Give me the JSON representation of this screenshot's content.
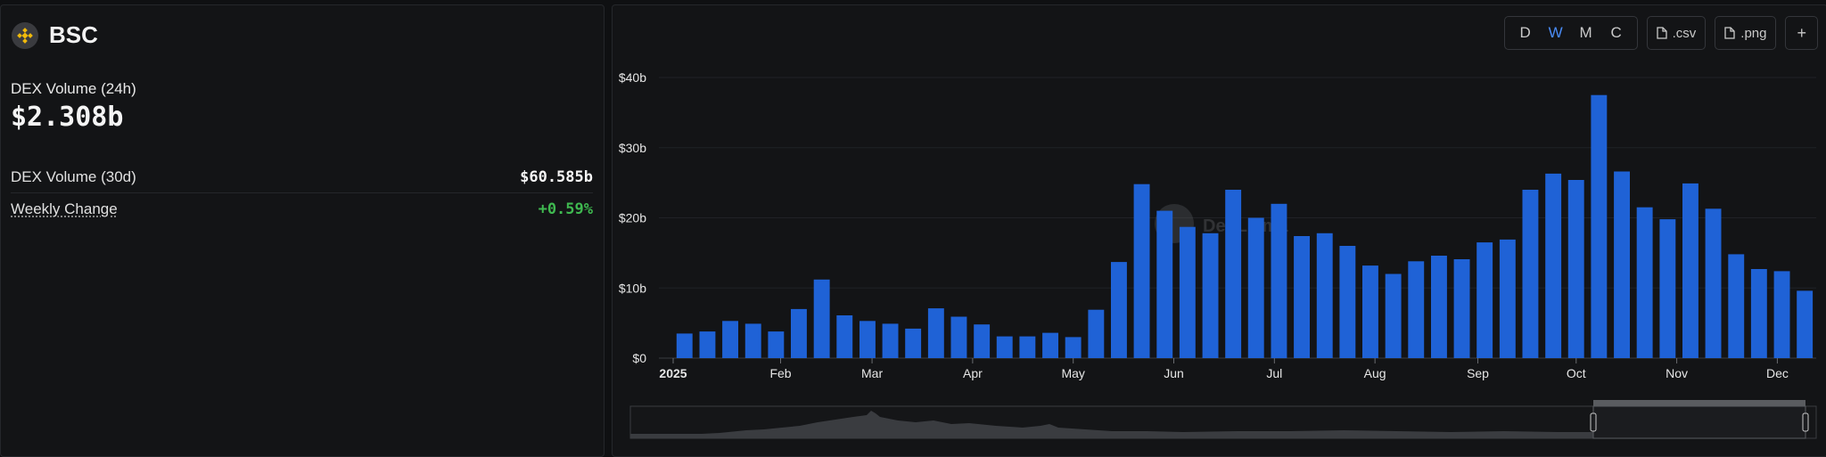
{
  "chain": {
    "name": "BSC",
    "icon": "bnb-chain-icon"
  },
  "dex_volume_24h": {
    "label": "DEX Volume (24h)",
    "value": "$2.308b"
  },
  "stats": [
    {
      "label": "DEX Volume (30d)",
      "value": "$60.585b",
      "tone": "neutral"
    },
    {
      "label": "Weekly Change",
      "value": "+0.59%",
      "tone": "positive"
    }
  ],
  "toolbar": {
    "granularity": [
      "D",
      "W",
      "M",
      "C"
    ],
    "active_granularity": "W",
    "csv_label": ".csv",
    "png_label": ".png",
    "add_label": "+"
  },
  "colors": {
    "bar": "#1f62d6",
    "active": "#4a8cf7",
    "positive": "#3fb950"
  },
  "watermark": "DefiLlama",
  "chart_data": {
    "type": "bar",
    "series": [
      {
        "values": [
          3.5,
          3.8,
          5.3,
          4.9,
          3.8,
          7.0,
          11.2,
          6.1,
          5.3,
          4.9,
          4.2,
          7.1,
          5.9,
          4.8,
          3.1,
          3.1,
          3.6,
          3.0,
          6.9,
          13.7,
          24.8,
          21.0,
          18.7,
          17.8,
          24.0,
          20.0,
          22.0,
          17.4,
          17.8,
          16.0,
          13.2,
          12.0,
          13.8,
          14.6,
          14.1,
          16.5,
          16.9,
          24.0,
          26.3,
          25.4,
          37.5,
          26.6,
          21.5,
          19.8,
          24.9,
          21.3,
          14.8,
          12.7,
          12.4,
          9.6
        ]
      }
    ],
    "x_tick_labels": [
      "2025",
      "Feb",
      "Mar",
      "Apr",
      "May",
      "Jun",
      "Jul",
      "Aug",
      "Sep",
      "Oct",
      "Nov",
      "Dec"
    ],
    "y_tick_labels": [
      "$0",
      "$10b",
      "$20b",
      "$30b",
      "$40b"
    ],
    "y_ticks": [
      0,
      10,
      20,
      30,
      40
    ],
    "ylim": [
      0,
      40
    ],
    "grid": true,
    "unit": "billion USD"
  }
}
